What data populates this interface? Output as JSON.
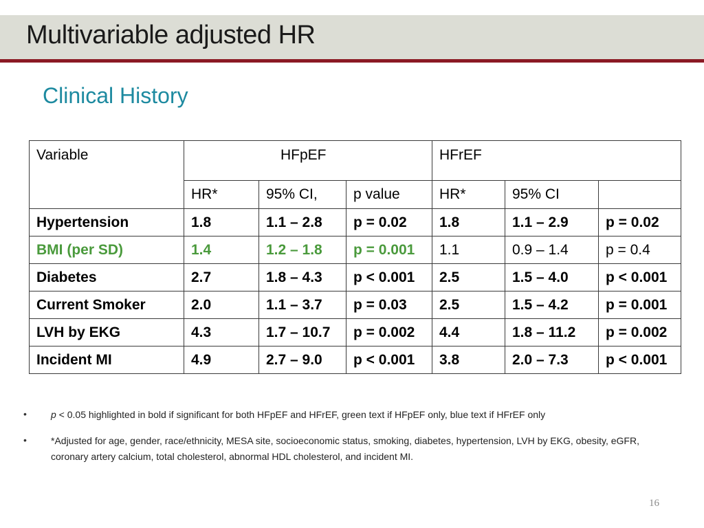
{
  "slide": {
    "title": "Multivariable adjusted HR",
    "subtitle": "Clinical History",
    "page_number": "16"
  },
  "table": {
    "header": {
      "variable": "Variable",
      "hfpef": "HFpEF",
      "hfref": "HFrEF",
      "sub": [
        "HR*",
        "95% CI,",
        "p value",
        "HR*",
        "95% CI",
        ""
      ]
    },
    "rows": [
      {
        "variable": "Hypertension",
        "cells": [
          "1.8",
          "1.1 – 2.8",
          "p = 0.02",
          "1.8",
          "1.1 – 2.9",
          "p = 0.02"
        ]
      },
      {
        "variable": "BMI (per SD)",
        "cells": [
          "1.4",
          "1.2 – 1.8",
          "p = 0.001",
          "1.1",
          "0.9 – 1.4",
          "p = 0.4"
        ]
      },
      {
        "variable": "Diabetes",
        "cells": [
          "2.7",
          "1.8 – 4.3",
          "p < 0.001",
          "2.5",
          "1.5 – 4.0",
          "p < 0.001"
        ]
      },
      {
        "variable": "Current Smoker",
        "cells": [
          "2.0",
          "1.1 – 3.7",
          "p = 0.03",
          "2.5",
          "1.5 – 4.2",
          "p = 0.001"
        ]
      },
      {
        "variable": "LVH by EKG",
        "cells": [
          "4.3",
          "1.7 – 10.7",
          "p = 0.002",
          "4.4",
          "1.8 – 11.2",
          "p = 0.002"
        ]
      },
      {
        "variable": "Incident MI",
        "cells": [
          "4.9",
          "2.7 – 9.0",
          "p < 0.001",
          "3.8",
          "2.0 – 7.3",
          "p < 0.001"
        ]
      }
    ]
  },
  "notes": {
    "bullet_symbol": "•",
    "note1_p": "p",
    "note1_text": " < 0.05 highlighted in bold if significant for both HFpEF and HFrEF, green text if HFpEF only, blue text if HFrEF only",
    "note2_text": "*Adjusted for age, gender, race/ethnicity, MESA site, socioeconomic status, smoking, diabetes, hypertension, LVH by EKG, obesity, eGFR, coronary artery calcium, total cholesterol, abnormal HDL cholesterol, and incident MI."
  },
  "colors": {
    "title_band": "#dcddd5",
    "title_rule": "#8b1a24",
    "subtitle": "#1d8aa0",
    "hfpef_only_green": "#4a9a3c"
  }
}
